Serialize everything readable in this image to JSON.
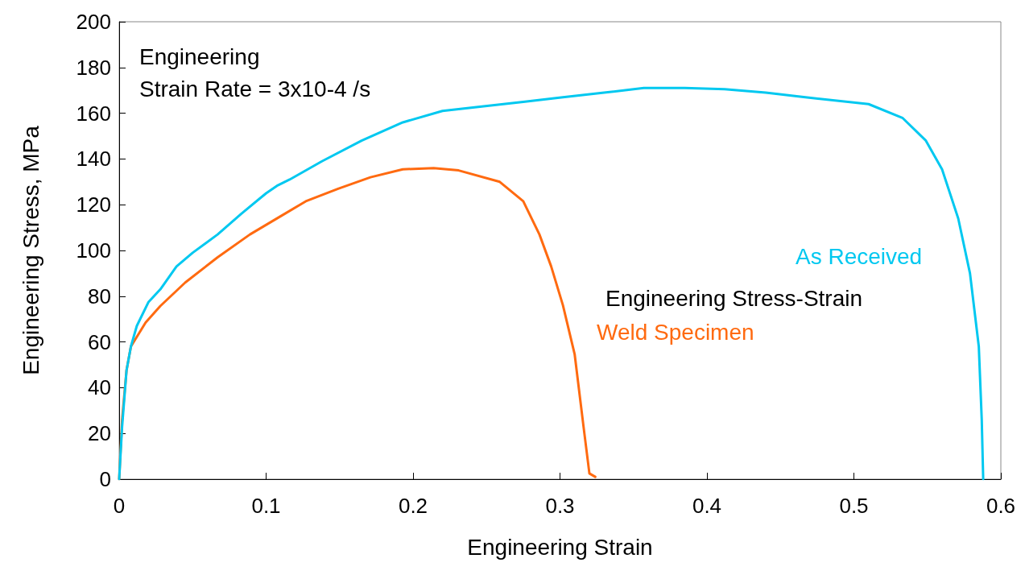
{
  "chart_data": {
    "type": "line",
    "xlabel": "Engineering Strain",
    "ylabel": "Engineering Stress, MPa",
    "xlim": [
      0,
      0.6
    ],
    "xticks": [
      0,
      0.1,
      0.2,
      0.3,
      0.4,
      0.5,
      0.6
    ],
    "ylim": [
      0,
      200
    ],
    "yticks": [
      0,
      20,
      40,
      60,
      80,
      100,
      120,
      140,
      160,
      180,
      200
    ],
    "grid": false,
    "legend": false,
    "marker": "none",
    "line_style": "solid",
    "annotations": [
      {
        "text": "Engineering\nStrain Rate = 3x10-4 /s"
      },
      {
        "text": "Engineering Stress-Strain"
      }
    ],
    "series": [
      {
        "name": "As Received",
        "color": "#00c8f0",
        "x": [
          0,
          0.002,
          0.005,
          0.008,
          0.012,
          0.02,
          0.028,
          0.039,
          0.05,
          0.067,
          0.083,
          0.1,
          0.108,
          0.116,
          0.138,
          0.165,
          0.193,
          0.22,
          0.248,
          0.275,
          0.302,
          0.33,
          0.357,
          0.385,
          0.412,
          0.44,
          0.467,
          0.51,
          0.533,
          0.549,
          0.56,
          0.571,
          0.579,
          0.585,
          0.587,
          0.588
        ],
        "values": [
          0,
          23,
          47.5,
          58,
          67,
          77.5,
          83,
          93,
          99,
          107,
          116,
          125,
          128.5,
          131,
          139,
          148,
          156,
          161,
          163,
          165,
          167,
          169,
          171,
          171,
          170.5,
          169,
          167,
          164,
          158,
          148,
          135.5,
          114,
          90,
          58,
          26,
          0
        ]
      },
      {
        "name": "Weld Specimen",
        "color": "#ff6a10",
        "x": [
          0,
          0.002,
          0.005,
          0.008,
          0.018,
          0.028,
          0.045,
          0.067,
          0.089,
          0.11,
          0.127,
          0.149,
          0.171,
          0.193,
          0.214,
          0.231,
          0.259,
          0.275,
          0.286,
          0.294,
          0.302,
          0.31,
          0.316,
          0.32,
          0.324
        ],
        "values": [
          0,
          26,
          47.5,
          58,
          68.5,
          75.7,
          86,
          97,
          107,
          115,
          121.5,
          127,
          132,
          135.5,
          136,
          135,
          130,
          121.5,
          107,
          93,
          76,
          54.5,
          23,
          2.5,
          1
        ]
      }
    ]
  }
}
